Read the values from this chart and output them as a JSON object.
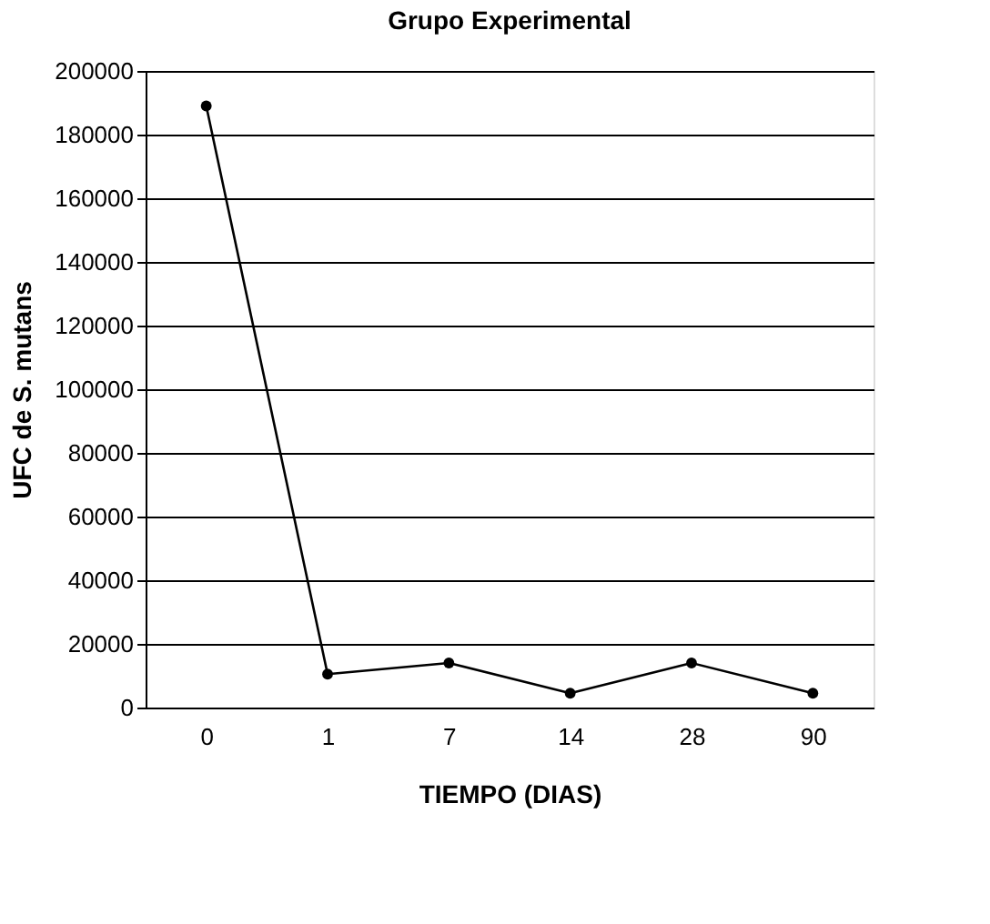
{
  "chart_data": {
    "type": "line",
    "title": "Grupo Experimental",
    "xlabel": "TIEMPO (DIAS)",
    "ylabel": "UFC de S. mutans",
    "categories": [
      "0",
      "1",
      "7",
      "14",
      "28",
      "90"
    ],
    "series": [
      {
        "color": "#000000",
        "values": [
          189000,
          10500,
          14000,
          4500,
          14000,
          4500
        ]
      }
    ],
    "ylim": [
      0,
      200000
    ],
    "yticks": [
      0,
      20000,
      40000,
      60000,
      80000,
      100000,
      120000,
      140000,
      160000,
      180000,
      200000
    ],
    "grid": "y",
    "marker": "circle",
    "line_style": "solid"
  }
}
